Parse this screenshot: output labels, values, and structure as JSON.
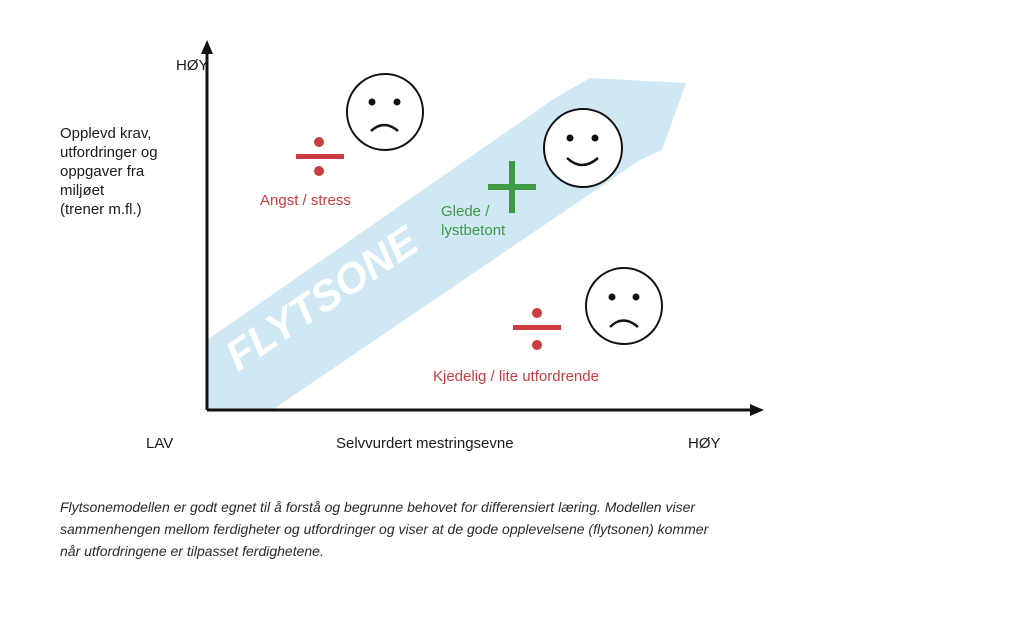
{
  "axis": {
    "y_high": "HØY",
    "y_title_lines": [
      "Opplevd krav,",
      "utfordringer og",
      "oppgaver fra",
      "miljøet",
      "(trener m.fl.)"
    ],
    "x_low": "LAV",
    "x_title": "Selvvurdert mestringsevne",
    "x_high": "HØY"
  },
  "band_label": "FLYTSONE",
  "zones": {
    "anxiety": "Angst / stress",
    "joy_lines": [
      "Glede /",
      "lystbetont"
    ],
    "boredom": "Kjedelig / lite utfordrende"
  },
  "caption_lines": [
    "Flytsonemodellen er godt egnet til å forstå og begrunne behovet for differensiert læring. Modellen viser",
    "sammenhengen mellom ferdigheter og utfordringer og viser at de gode opplevelsene (flytsonen) kommer",
    "når utfordringene er tilpasset ferdighetene."
  ],
  "colors": {
    "band": "#cfe8f4",
    "band_text": "#ffffff",
    "negative": "#cc3b3f",
    "positive": "#3f9a44",
    "axis": "#111111"
  }
}
